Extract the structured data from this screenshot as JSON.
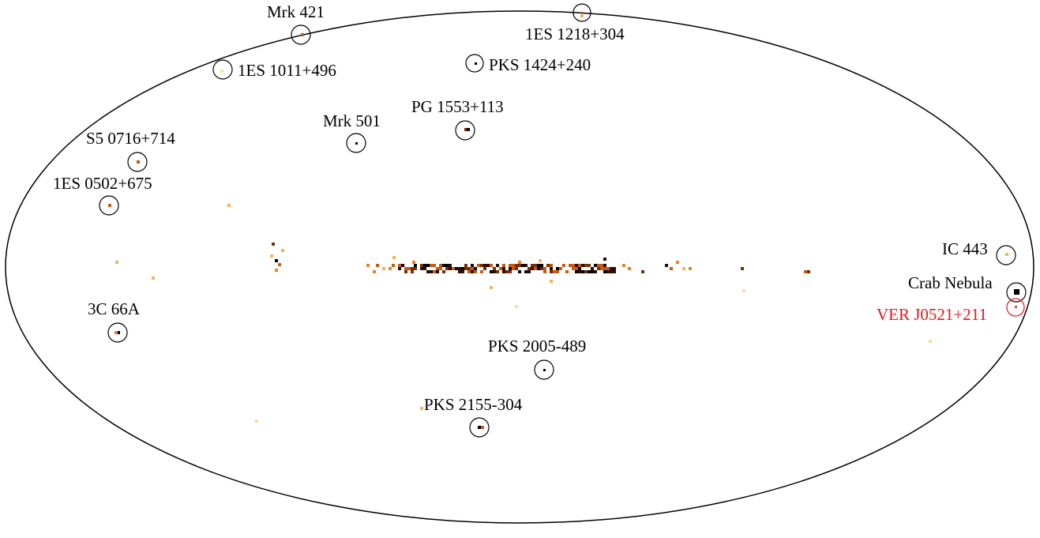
{
  "colors": {
    "outline": "#000000",
    "label": "#000000",
    "highlight": "#e8141c",
    "pixel_scale": [
      "#fcd9a0",
      "#f6b25a",
      "#e8821e",
      "#c85a10",
      "#7a2c06",
      "#2a0d02",
      "#000000"
    ]
  },
  "sources": [
    {
      "id": "mrk-421",
      "name": "Mrk 421",
      "highlight": false
    },
    {
      "id": "1es-1218-304",
      "name": "1ES 1218+304",
      "highlight": false
    },
    {
      "id": "1es-1011-496",
      "name": "1ES 1011+496",
      "highlight": false
    },
    {
      "id": "pks-1424-240",
      "name": "PKS 1424+240",
      "highlight": false
    },
    {
      "id": "mrk-501",
      "name": "Mrk 501",
      "highlight": false
    },
    {
      "id": "pg-1553-113",
      "name": "PG 1553+113",
      "highlight": false
    },
    {
      "id": "s5-0716-714",
      "name": "S5 0716+714",
      "highlight": false
    },
    {
      "id": "1es-0502-675",
      "name": "1ES 0502+675",
      "highlight": false
    },
    {
      "id": "ic-443",
      "name": "IC 443",
      "highlight": false
    },
    {
      "id": "crab-nebula",
      "name": "Crab Nebula",
      "highlight": false
    },
    {
      "id": "ver-j0521-211",
      "name": "VER J0521+211",
      "highlight": true
    },
    {
      "id": "3c-66a",
      "name": "3C 66A",
      "highlight": false
    },
    {
      "id": "pks-2005-489",
      "name": "PKS 2005-489",
      "highlight": false
    },
    {
      "id": "pks-2155-304",
      "name": "PKS 2155-304",
      "highlight": false
    }
  ]
}
